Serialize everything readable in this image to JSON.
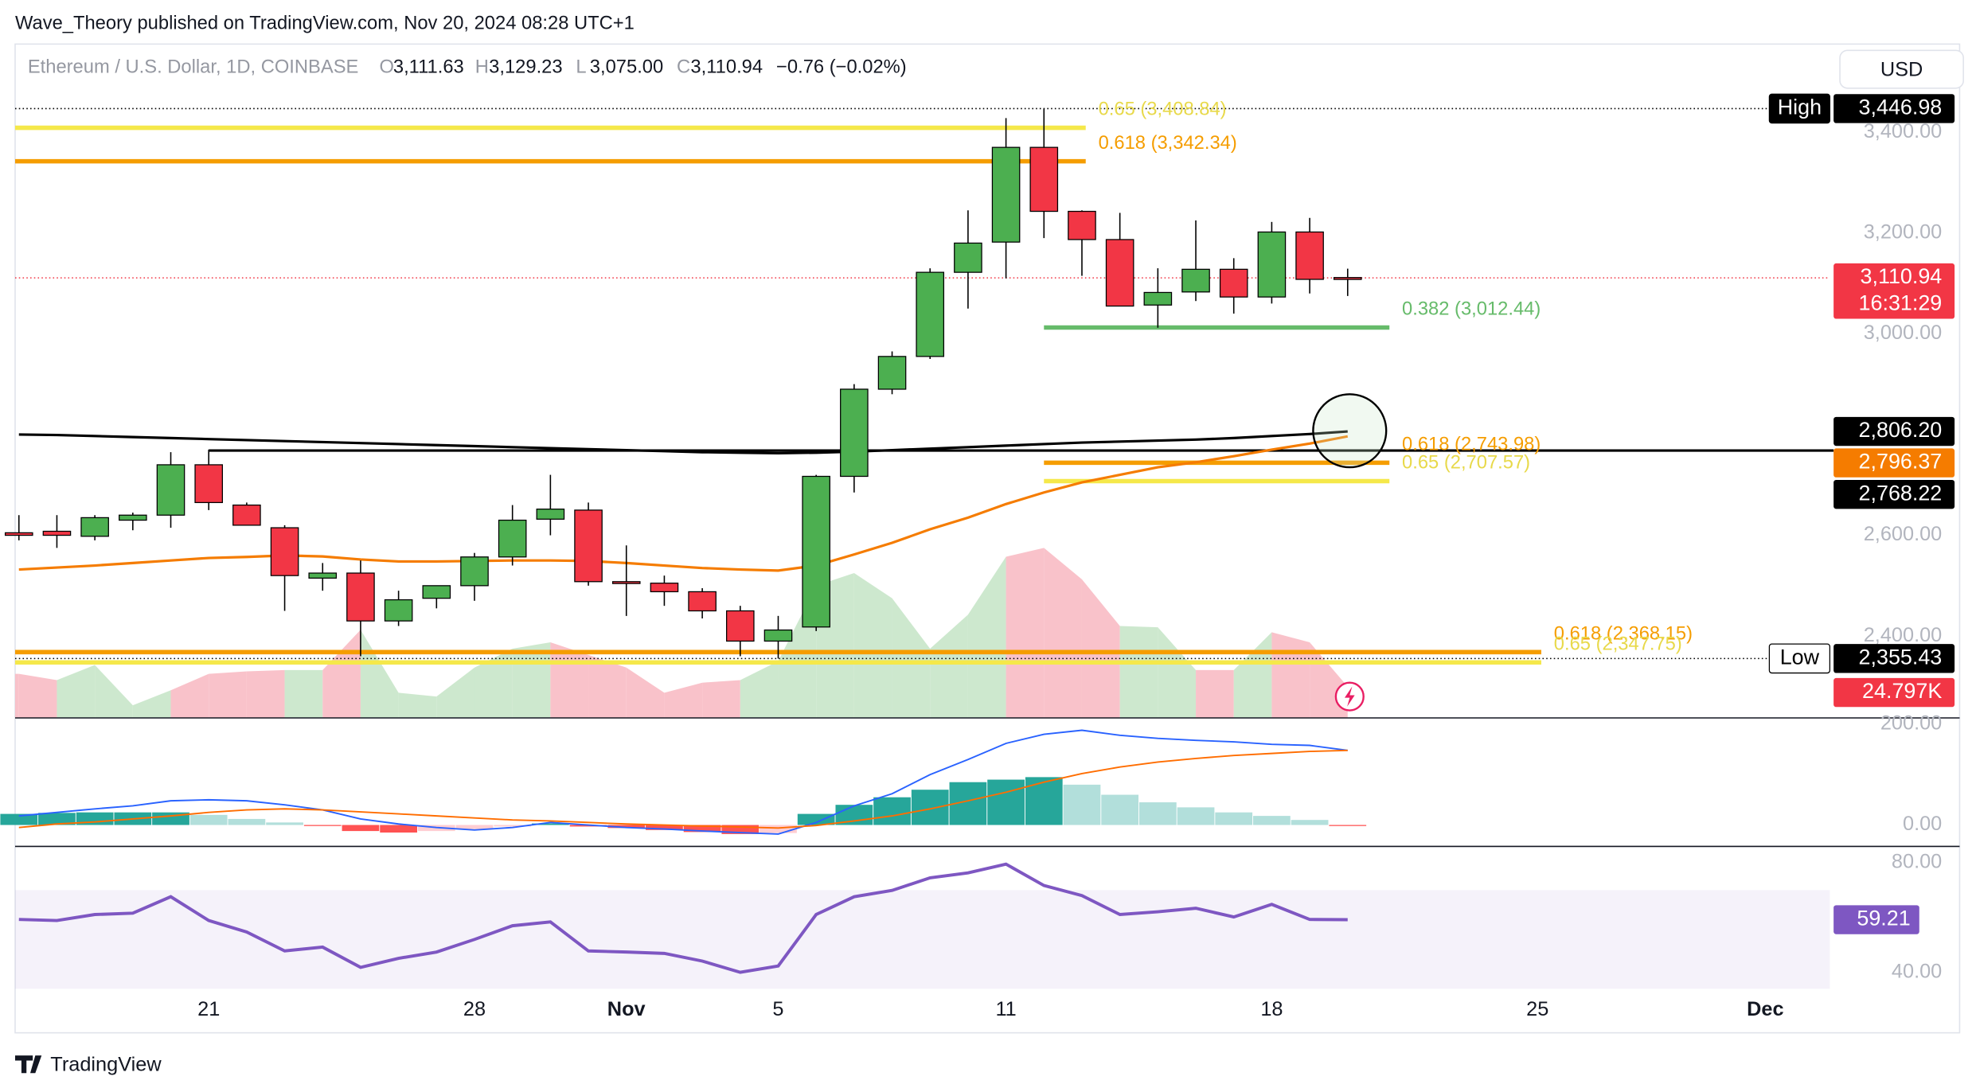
{
  "header": {
    "publisher": "Wave_Theory published on TradingView.com, Nov 20, 2024 08:28 UTC+1",
    "symbol": "Ethereum / U.S. Dollar, 1D, COINBASE",
    "ohlc": [
      {
        "key": "O",
        "value": "3,111.63"
      },
      {
        "key": "H",
        "value": "3,129.23"
      },
      {
        "key": "L",
        "value": "3,075.00"
      },
      {
        "key": "C",
        "value": "3,110.94"
      }
    ],
    "change": "−0.76 (−0.02%)",
    "currency": "USD"
  },
  "footer": {
    "brand": "TradingView"
  },
  "chart_data": {
    "type": "candlestick",
    "xlim": [
      -0.1,
      47.7
    ],
    "xticks": [
      {
        "value": 5,
        "label": "21"
      },
      {
        "value": 12,
        "label": "28"
      },
      {
        "value": 16,
        "label": "Nov",
        "bold": true
      },
      {
        "value": 20,
        "label": "5"
      },
      {
        "value": 26,
        "label": "11"
      },
      {
        "value": 33,
        "label": "18"
      },
      {
        "value": 40,
        "label": "25"
      },
      {
        "value": 46,
        "label": "Dec",
        "bold": true
      }
    ],
    "ylim": [
      2237.5,
      3575
    ],
    "yticks": [
      {
        "value": 2400,
        "label": "2,400.00"
      },
      {
        "value": 2600,
        "label": "2,600.00"
      },
      {
        "value": 3000,
        "label": "3,000.00"
      },
      {
        "value": 3200,
        "label": "3,200.00"
      },
      {
        "value": 3400,
        "label": "3,400.00"
      }
    ],
    "up_color": "#4caf50",
    "down_color": "#f23645",
    "open": [
      2605,
      2608,
      2598,
      2630,
      2640,
      2740,
      2660,
      2615,
      2515,
      2525,
      2430,
      2475,
      2500,
      2557,
      2632,
      2650,
      2508,
      2505,
      2488,
      2450,
      2390,
      2418,
      2717,
      2890,
      2955,
      3122,
      3182,
      3370,
      3243,
      3187,
      3057,
      3083,
      3128,
      3073,
      3202,
      3111.63
    ],
    "high": [
      2640,
      2640,
      2640,
      2645,
      2765,
      2770,
      2665,
      2620,
      2545,
      2550,
      2490,
      2500,
      2565,
      2660,
      2720,
      2665,
      2580,
      2520,
      2495,
      2460,
      2440,
      2720,
      2900,
      2965,
      3130,
      3245,
      3428,
      3446.98,
      3245,
      3240,
      3130,
      3225,
      3150,
      3222,
      3230,
      3129.23
    ],
    "low": [
      2590,
      2575,
      2590,
      2610,
      2615,
      2650,
      2620,
      2450,
      2490,
      2360,
      2420,
      2455,
      2470,
      2540,
      2600,
      2500,
      2440,
      2460,
      2435,
      2360,
      2355.43,
      2410,
      2685,
      2880,
      2950,
      3050,
      3110,
      3190,
      3115,
      3055,
      3012,
      3065,
      3040,
      3060,
      3080,
      3075
    ],
    "close": [
      2600,
      2600,
      2635,
      2640,
      2740,
      2665,
      2620,
      2520,
      2525,
      2430,
      2472,
      2500,
      2557,
      2630,
      2652,
      2508,
      2505,
      2488,
      2450,
      2390,
      2412,
      2717,
      2890,
      2955,
      3122,
      3180,
      3370,
      3243,
      3187,
      3055,
      3082,
      3128,
      3073,
      3202,
      3108,
      3110.94
    ],
    "moving_averages": [
      {
        "color": "#000000",
        "values": [
          2800,
          2799,
          2797,
          2795,
          2793,
          2791,
          2789,
          2787,
          2785,
          2783,
          2781,
          2779,
          2777,
          2775,
          2773,
          2771,
          2769,
          2767,
          2765,
          2764,
          2763,
          2764,
          2766,
          2769,
          2772,
          2775,
          2778,
          2781,
          2784,
          2786,
          2788,
          2790,
          2793,
          2797,
          2801,
          2806.2
        ]
      },
      {
        "color": "#f57c00",
        "values": [
          2532,
          2536,
          2540,
          2545,
          2550,
          2555,
          2557,
          2560,
          2558,
          2552,
          2548,
          2548,
          2549,
          2550,
          2550,
          2549,
          2545,
          2540,
          2535,
          2532,
          2530,
          2540,
          2562,
          2585,
          2612,
          2635,
          2662,
          2685,
          2705,
          2720,
          2735,
          2745,
          2757,
          2770,
          2782,
          2796.37
        ]
      }
    ],
    "levels": [
      {
        "value": 3408.84,
        "label": "0.65 (3,408.84)",
        "color": "#f5e84a",
        "text_color": "#e8d94a",
        "from": -0.1,
        "to": 28.1
      },
      {
        "value": 3342.34,
        "label": "0.618 (3,342.34)",
        "color": "#f59d00",
        "text_color": "#f59d00",
        "from": -0.1,
        "to": 28.1
      },
      {
        "value": 3012.44,
        "label": "0.382 (3,012.44)",
        "color": "#66bb6a",
        "text_color": "#66bb6a",
        "from": 27,
        "to": 36.1
      },
      {
        "value": 2743.98,
        "label": "0.618 (2,743.98)",
        "color": "#f59d00",
        "text_color": "#f59d00",
        "from": 27,
        "to": 36.1
      },
      {
        "value": 2707.57,
        "label": "0.65 (2,707.57)",
        "color": "#f5e84a",
        "text_color": "#e8d94a",
        "from": 27,
        "to": 36.1
      },
      {
        "value": 2368.15,
        "label": "0.618 (2,368.15)",
        "color": "#f59d00",
        "text_color": "#f59d00",
        "from": -0.1,
        "to": 40.1
      },
      {
        "value": 2347.75,
        "label": "0.65 (2,347.75)",
        "color": "#f5e84a",
        "text_color": "#e8d94a",
        "from": -0.1,
        "to": 40.1
      }
    ],
    "hlines": [
      {
        "value": 2768.22,
        "color": "#000000",
        "from": 5,
        "style": "solid"
      },
      {
        "value": 3446.98,
        "color": "#000000",
        "from": -0.1,
        "style": "dotted"
      },
      {
        "value": 2355.43,
        "color": "#000000",
        "from": -0.1,
        "style": "dotted"
      },
      {
        "value": 3110.94,
        "color": "#f23645",
        "from": -0.1,
        "style": "dotted"
      }
    ],
    "price_labels": [
      {
        "value": 3446.98,
        "label": "3,446.98",
        "caption": "High",
        "bg": "#000000",
        "fg": "#ffffff",
        "caption_bg": "#000000",
        "caption_fg": "#ffffff"
      },
      {
        "value": 3110.94,
        "label": "3,110.94",
        "countdown": "16:31:29",
        "bg": "#f23645",
        "fg": "#ffffff"
      },
      {
        "value": 2806.2,
        "label": "2,806.20",
        "bg": "#000000",
        "fg": "#ffffff"
      },
      {
        "value": 2796.37,
        "label": "2,796.37",
        "bg": "#f57c00",
        "fg": "#ffffff"
      },
      {
        "value": 2768.22,
        "label": "2,768.22",
        "bg": "#000000",
        "fg": "#ffffff"
      },
      {
        "value": 2355.43,
        "label": "2,355.43",
        "caption": "Low",
        "bg": "#000000",
        "fg": "#ffffff",
        "caption_bg": "#ffffff",
        "caption_fg": "#000000"
      }
    ],
    "volume": {
      "ylim": [
        0,
        535
      ],
      "up_color": "#c8e6c9",
      "down_color": "#f8bbc4",
      "values": [
        35,
        30,
        42,
        10,
        22,
        35,
        37,
        38,
        38,
        70,
        20,
        17,
        40,
        55,
        60,
        50,
        40,
        20,
        28,
        30,
        45,
        105,
        115,
        95,
        55,
        82,
        128,
        135,
        110,
        73,
        72,
        38,
        38,
        68,
        60,
        24.797
      ],
      "last": {
        "value": 24.797,
        "label": "24.797K",
        "bg": "#f23645",
        "fg": "#ffffff"
      }
    },
    "macd": {
      "ylim": [
        -42.5,
        207.5
      ],
      "yticks": [
        {
          "value": 0,
          "label": "0.00"
        },
        {
          "value": 200,
          "label": "200.00"
        }
      ],
      "hist_colors": [
        "#26a69a",
        "#b2dfdb",
        "#ff5252",
        "#ffcdd2"
      ],
      "macd_color": "#2962ff",
      "signal_color": "#ff6d00",
      "histogram": [
        22,
        24,
        25,
        25,
        25,
        20,
        12,
        5,
        -2,
        -12,
        -15,
        -12,
        -8,
        -3,
        3,
        -3,
        -6,
        -10,
        -14,
        -18,
        -16,
        22,
        40,
        55,
        70,
        85,
        90,
        95,
        80,
        60,
        45,
        35,
        25,
        18,
        10,
        -2
      ],
      "macd": [
        18,
        25,
        32,
        38,
        48,
        50,
        48,
        40,
        30,
        12,
        2,
        -5,
        -10,
        -5,
        5,
        0,
        -5,
        -8,
        -12,
        -15,
        -18,
        5,
        38,
        62,
        100,
        130,
        162,
        180,
        188,
        178,
        172,
        168,
        165,
        160,
        158,
        148
      ],
      "signal": [
        -5,
        2,
        6,
        12,
        18,
        25,
        30,
        32,
        30,
        26,
        22,
        18,
        14,
        10,
        8,
        5,
        2,
        0,
        -2,
        -4,
        -6,
        -1,
        8,
        18,
        32,
        48,
        65,
        85,
        102,
        115,
        125,
        132,
        138,
        142,
        146,
        148
      ]
    },
    "rsi": {
      "ylim": [
        34,
        84.6
      ],
      "yticks": [
        {
          "value": 40,
          "label": "40.00"
        },
        {
          "value": 80,
          "label": "80.00"
        }
      ],
      "band": [
        30,
        70
      ],
      "color": "#7e57c2",
      "values": [
        59.3,
        58.9,
        61.1,
        61.6,
        67.6,
        58.9,
        54.7,
        47.8,
        49.2,
        41.8,
        45.1,
        47.4,
        52,
        57,
        58.4,
        47.8,
        47.4,
        46.9,
        44.1,
        40,
        42.3,
        61.1,
        67.6,
        69.9,
        74.5,
        76.3,
        79.5,
        71.7,
        68,
        61.1,
        62.1,
        63.4,
        60.2,
        64.8,
        59.3,
        59.21
      ],
      "last": {
        "value": 59.21,
        "label": "59.21"
      }
    }
  }
}
